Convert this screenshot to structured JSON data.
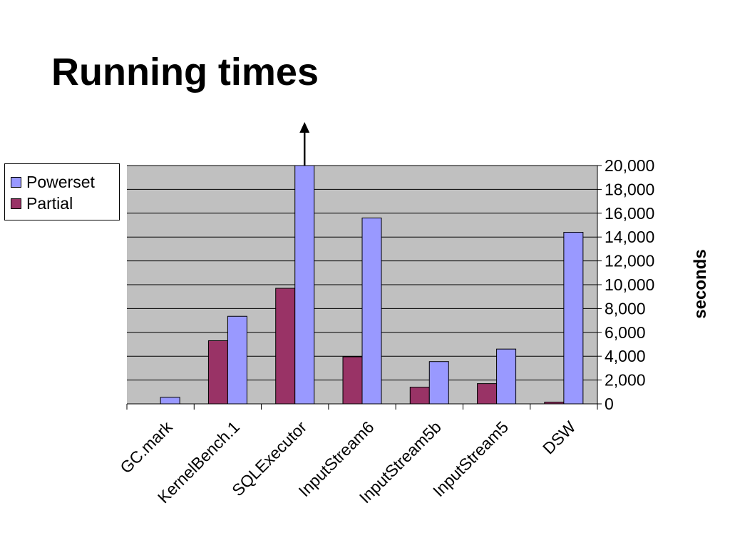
{
  "slide": {
    "title": "Running times"
  },
  "legend": {
    "items": [
      {
        "label": "Powerset",
        "color": "#9999ff"
      },
      {
        "label": "Partial",
        "color": "#993366"
      }
    ]
  },
  "chart_data": {
    "type": "bar",
    "title": "",
    "categories": [
      "GC.mark",
      "KernelBench.1",
      "SQLExecutor",
      "InputStream6",
      "InputStream5b",
      "InputStream5",
      "DSW"
    ],
    "series": [
      {
        "name": "Partial",
        "color": "#993366",
        "values": [
          0,
          5300,
          9700,
          3950,
          1400,
          1700,
          150
        ]
      },
      {
        "name": "Powerset",
        "color": "#9999ff",
        "values": [
          550,
          7350,
          20000,
          15600,
          3550,
          4600,
          14400
        ]
      }
    ],
    "xlabel": "",
    "ylabel": "seconds",
    "ylim": [
      0,
      20000
    ],
    "yticks": [
      0,
      2000,
      4000,
      6000,
      8000,
      10000,
      12000,
      14000,
      16000,
      18000,
      20000
    ],
    "ytick_labels": [
      "0",
      "2,000",
      "4,000",
      "6,000",
      "8,000",
      "10,000",
      "12,000",
      "14,000",
      "16,000",
      "18,000",
      "20,000"
    ],
    "y_axis_position": "right",
    "grid": true,
    "plot_background": "#c0c0c0",
    "legend_position": "left",
    "annotations": [
      {
        "type": "arrow",
        "category": "SQLExecutor",
        "series": "Powerset",
        "direction": "up",
        "meaning": "value exceeds axis maximum"
      }
    ]
  }
}
